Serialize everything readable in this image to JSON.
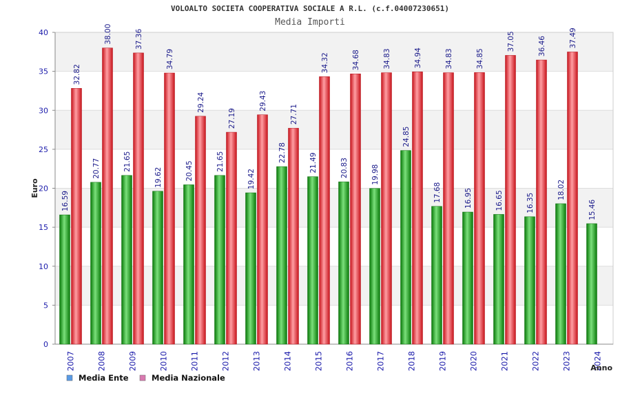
{
  "chart_data": {
    "type": "bar",
    "title": "VOLOALTO SOCIETA COOPERATIVA SOCIALE A R.L. (c.f.04007230651)",
    "subtitle": "Media Importi",
    "xlabel": "Anno",
    "ylabel": "Euro",
    "ylim": [
      0,
      40
    ],
    "yticks": [
      "0",
      "5",
      "10",
      "15",
      "20",
      "25",
      "30",
      "35",
      "40"
    ],
    "categories": [
      "2007",
      "2008",
      "2009",
      "2010",
      "2011",
      "2012",
      "2013",
      "2014",
      "2015",
      "2016",
      "2017",
      "2018",
      "2019",
      "2020",
      "2021",
      "2022",
      "2023",
      "2024"
    ],
    "series": [
      {
        "name": "Media Ente",
        "color": "#1aa31a",
        "legend_color": "#5a9be6",
        "values": [
          16.59,
          20.77,
          21.65,
          19.62,
          20.45,
          21.65,
          19.42,
          22.78,
          21.49,
          20.83,
          19.98,
          24.85,
          17.68,
          16.95,
          16.65,
          16.35,
          18.02,
          15.46
        ],
        "labels": [
          "16.59",
          "20.77",
          "21.65",
          "19.62",
          "20.45",
          "21.65",
          "19.42",
          "22.78",
          "21.49",
          "20.83",
          "19.98",
          "24.85",
          "17.68",
          "16.95",
          "16.65",
          "16.35",
          "18.02",
          "15.46"
        ]
      },
      {
        "name": "Media Nazionale",
        "color": "#e8202a",
        "legend_color": "#d97ab0",
        "values": [
          32.82,
          38.0,
          37.36,
          34.79,
          29.24,
          27.19,
          29.43,
          27.71,
          34.32,
          34.68,
          34.83,
          34.94,
          34.83,
          34.85,
          37.05,
          36.46,
          37.49,
          null
        ],
        "labels": [
          "32.82",
          "38.00",
          "37.36",
          "34.79",
          "29.24",
          "27.19",
          "29.43",
          "27.71",
          "34.32",
          "34.68",
          "34.83",
          "34.94",
          "34.83",
          "34.85",
          "37.05",
          "36.46",
          "37.49",
          ""
        ]
      }
    ],
    "grid": true,
    "legend_position": "bottom-left"
  }
}
